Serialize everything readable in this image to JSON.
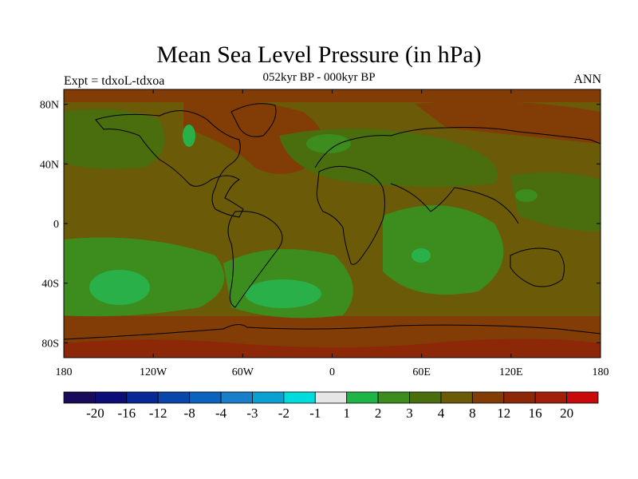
{
  "title": "Mean Sea Level Pressure (in hPa)",
  "subtitle": "052kyr BP - 000kyr BP",
  "left_label": "Expt = tdxoL-tdxoa",
  "right_label": "ANN",
  "map": {
    "lon_range": [
      -180,
      180
    ],
    "lat_range": [
      -90,
      90
    ],
    "base_color": "#6b5a08",
    "lat_ticks": [
      {
        "value": 80,
        "label": "80N"
      },
      {
        "value": 40,
        "label": "40N"
      },
      {
        "value": 0,
        "label": "0"
      },
      {
        "value": -40,
        "label": "40S"
      },
      {
        "value": -80,
        "label": "80S"
      }
    ],
    "lon_ticks": [
      {
        "value": -180,
        "label": "180"
      },
      {
        "value": -120,
        "label": "120W"
      },
      {
        "value": -60,
        "label": "60W"
      },
      {
        "value": 0,
        "label": "0"
      },
      {
        "value": 60,
        "label": "60E"
      },
      {
        "value": 120,
        "label": "120E"
      },
      {
        "value": 180,
        "label": "180"
      }
    ]
  },
  "colorbar": {
    "colors": [
      "#1a0a5a",
      "#0d0d78",
      "#082896",
      "#0a46aa",
      "#0a64be",
      "#1a7ec8",
      "#0aa0d2",
      "#00dcdc",
      "#e6e6e6",
      "#1eb446",
      "#3c8c1e",
      "#4a6e0e",
      "#6b5a08",
      "#823c05",
      "#8c2808",
      "#a01e0a",
      "#c80a0a"
    ],
    "labels": [
      "-20",
      "-16",
      "-12",
      "-8",
      "-4",
      "-3",
      "-2",
      "-1",
      "1",
      "2",
      "3",
      "4",
      "8",
      "12",
      "16",
      "20"
    ]
  },
  "palette": {
    "green_light": "#2ab048",
    "green_mid": "#3c8c1e",
    "green_dark": "#4a6e0e",
    "brown": "#6b5a08",
    "orange": "#823c05",
    "red": "#8c2808",
    "coast": "#000000"
  }
}
